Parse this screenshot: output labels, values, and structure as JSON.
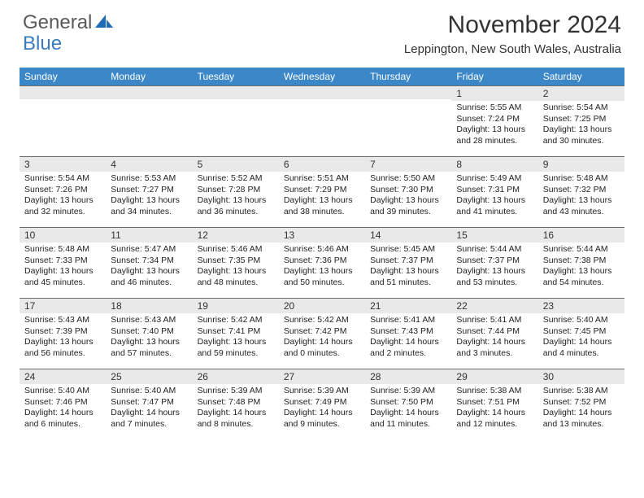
{
  "brand": {
    "part1": "General",
    "part2": "Blue"
  },
  "title": "November 2024",
  "location": "Leppington, New South Wales, Australia",
  "day_headers": [
    "Sunday",
    "Monday",
    "Tuesday",
    "Wednesday",
    "Thursday",
    "Friday",
    "Saturday"
  ],
  "colors": {
    "header_bg": "#3b87c8",
    "header_text": "#ffffff",
    "daynum_bg": "#e9e9e9",
    "border": "#6a6a6a",
    "logo_gray": "#5a5a5a",
    "logo_blue": "#3a7bbf"
  },
  "weeks": [
    [
      {
        "n": "",
        "sunrise": "",
        "sunset": "",
        "daylight": ""
      },
      {
        "n": "",
        "sunrise": "",
        "sunset": "",
        "daylight": ""
      },
      {
        "n": "",
        "sunrise": "",
        "sunset": "",
        "daylight": ""
      },
      {
        "n": "",
        "sunrise": "",
        "sunset": "",
        "daylight": ""
      },
      {
        "n": "",
        "sunrise": "",
        "sunset": "",
        "daylight": ""
      },
      {
        "n": "1",
        "sunrise": "Sunrise: 5:55 AM",
        "sunset": "Sunset: 7:24 PM",
        "daylight": "Daylight: 13 hours and 28 minutes."
      },
      {
        "n": "2",
        "sunrise": "Sunrise: 5:54 AM",
        "sunset": "Sunset: 7:25 PM",
        "daylight": "Daylight: 13 hours and 30 minutes."
      }
    ],
    [
      {
        "n": "3",
        "sunrise": "Sunrise: 5:54 AM",
        "sunset": "Sunset: 7:26 PM",
        "daylight": "Daylight: 13 hours and 32 minutes."
      },
      {
        "n": "4",
        "sunrise": "Sunrise: 5:53 AM",
        "sunset": "Sunset: 7:27 PM",
        "daylight": "Daylight: 13 hours and 34 minutes."
      },
      {
        "n": "5",
        "sunrise": "Sunrise: 5:52 AM",
        "sunset": "Sunset: 7:28 PM",
        "daylight": "Daylight: 13 hours and 36 minutes."
      },
      {
        "n": "6",
        "sunrise": "Sunrise: 5:51 AM",
        "sunset": "Sunset: 7:29 PM",
        "daylight": "Daylight: 13 hours and 38 minutes."
      },
      {
        "n": "7",
        "sunrise": "Sunrise: 5:50 AM",
        "sunset": "Sunset: 7:30 PM",
        "daylight": "Daylight: 13 hours and 39 minutes."
      },
      {
        "n": "8",
        "sunrise": "Sunrise: 5:49 AM",
        "sunset": "Sunset: 7:31 PM",
        "daylight": "Daylight: 13 hours and 41 minutes."
      },
      {
        "n": "9",
        "sunrise": "Sunrise: 5:48 AM",
        "sunset": "Sunset: 7:32 PM",
        "daylight": "Daylight: 13 hours and 43 minutes."
      }
    ],
    [
      {
        "n": "10",
        "sunrise": "Sunrise: 5:48 AM",
        "sunset": "Sunset: 7:33 PM",
        "daylight": "Daylight: 13 hours and 45 minutes."
      },
      {
        "n": "11",
        "sunrise": "Sunrise: 5:47 AM",
        "sunset": "Sunset: 7:34 PM",
        "daylight": "Daylight: 13 hours and 46 minutes."
      },
      {
        "n": "12",
        "sunrise": "Sunrise: 5:46 AM",
        "sunset": "Sunset: 7:35 PM",
        "daylight": "Daylight: 13 hours and 48 minutes."
      },
      {
        "n": "13",
        "sunrise": "Sunrise: 5:46 AM",
        "sunset": "Sunset: 7:36 PM",
        "daylight": "Daylight: 13 hours and 50 minutes."
      },
      {
        "n": "14",
        "sunrise": "Sunrise: 5:45 AM",
        "sunset": "Sunset: 7:37 PM",
        "daylight": "Daylight: 13 hours and 51 minutes."
      },
      {
        "n": "15",
        "sunrise": "Sunrise: 5:44 AM",
        "sunset": "Sunset: 7:37 PM",
        "daylight": "Daylight: 13 hours and 53 minutes."
      },
      {
        "n": "16",
        "sunrise": "Sunrise: 5:44 AM",
        "sunset": "Sunset: 7:38 PM",
        "daylight": "Daylight: 13 hours and 54 minutes."
      }
    ],
    [
      {
        "n": "17",
        "sunrise": "Sunrise: 5:43 AM",
        "sunset": "Sunset: 7:39 PM",
        "daylight": "Daylight: 13 hours and 56 minutes."
      },
      {
        "n": "18",
        "sunrise": "Sunrise: 5:43 AM",
        "sunset": "Sunset: 7:40 PM",
        "daylight": "Daylight: 13 hours and 57 minutes."
      },
      {
        "n": "19",
        "sunrise": "Sunrise: 5:42 AM",
        "sunset": "Sunset: 7:41 PM",
        "daylight": "Daylight: 13 hours and 59 minutes."
      },
      {
        "n": "20",
        "sunrise": "Sunrise: 5:42 AM",
        "sunset": "Sunset: 7:42 PM",
        "daylight": "Daylight: 14 hours and 0 minutes."
      },
      {
        "n": "21",
        "sunrise": "Sunrise: 5:41 AM",
        "sunset": "Sunset: 7:43 PM",
        "daylight": "Daylight: 14 hours and 2 minutes."
      },
      {
        "n": "22",
        "sunrise": "Sunrise: 5:41 AM",
        "sunset": "Sunset: 7:44 PM",
        "daylight": "Daylight: 14 hours and 3 minutes."
      },
      {
        "n": "23",
        "sunrise": "Sunrise: 5:40 AM",
        "sunset": "Sunset: 7:45 PM",
        "daylight": "Daylight: 14 hours and 4 minutes."
      }
    ],
    [
      {
        "n": "24",
        "sunrise": "Sunrise: 5:40 AM",
        "sunset": "Sunset: 7:46 PM",
        "daylight": "Daylight: 14 hours and 6 minutes."
      },
      {
        "n": "25",
        "sunrise": "Sunrise: 5:40 AM",
        "sunset": "Sunset: 7:47 PM",
        "daylight": "Daylight: 14 hours and 7 minutes."
      },
      {
        "n": "26",
        "sunrise": "Sunrise: 5:39 AM",
        "sunset": "Sunset: 7:48 PM",
        "daylight": "Daylight: 14 hours and 8 minutes."
      },
      {
        "n": "27",
        "sunrise": "Sunrise: 5:39 AM",
        "sunset": "Sunset: 7:49 PM",
        "daylight": "Daylight: 14 hours and 9 minutes."
      },
      {
        "n": "28",
        "sunrise": "Sunrise: 5:39 AM",
        "sunset": "Sunset: 7:50 PM",
        "daylight": "Daylight: 14 hours and 11 minutes."
      },
      {
        "n": "29",
        "sunrise": "Sunrise: 5:38 AM",
        "sunset": "Sunset: 7:51 PM",
        "daylight": "Daylight: 14 hours and 12 minutes."
      },
      {
        "n": "30",
        "sunrise": "Sunrise: 5:38 AM",
        "sunset": "Sunset: 7:52 PM",
        "daylight": "Daylight: 14 hours and 13 minutes."
      }
    ]
  ]
}
